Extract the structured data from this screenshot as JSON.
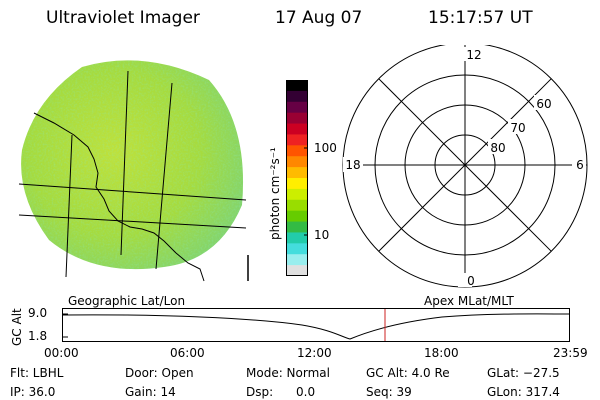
{
  "header": {
    "title": "Ultraviolet Imager",
    "date": "17 Aug 07",
    "time": "15:17:57 UT"
  },
  "colorbar": {
    "unit_label": "photon cm⁻²s⁻¹",
    "ticks": [
      "100",
      "10"
    ],
    "colors": [
      "#000000",
      "#330033",
      "#660044",
      "#990033",
      "#cc0022",
      "#ee2222",
      "#ff5500",
      "#ff8800",
      "#ffbb00",
      "#ffee00",
      "#ccee00",
      "#99dd00",
      "#66cc00",
      "#33bb44",
      "#22ccaa",
      "#44dddd",
      "#99eeee",
      "#e0e0e0"
    ]
  },
  "polar_plot": {
    "mlt_labels": {
      "top": "12",
      "bottom": "0",
      "left": "18",
      "right": "6"
    },
    "lat_labels": [
      "80",
      "70",
      "60"
    ]
  },
  "timeline": {
    "left_label": "Geographic Lat/Lon",
    "right_label": "Apex MLat/MLT",
    "y_axis_label": "GC Alt",
    "y_ticks": [
      "9.0",
      "1.8"
    ],
    "x_ticks": [
      "00:00",
      "06:00",
      "12:00",
      "18:00",
      "23:59"
    ],
    "marker_color": "#cc2222"
  },
  "info": {
    "flt": "Flt: LBHL",
    "ip": "IP: 36.0",
    "door": "Door: Open",
    "gain": "Gain: 14",
    "mode": "Mode: Normal",
    "dsp": "Dsp:      0.0",
    "gc_alt": "GC Alt: 4.0 Re",
    "seq": "Seq: 39",
    "glat": "GLat: −27.5",
    "glon": "GLon: 317.4"
  }
}
